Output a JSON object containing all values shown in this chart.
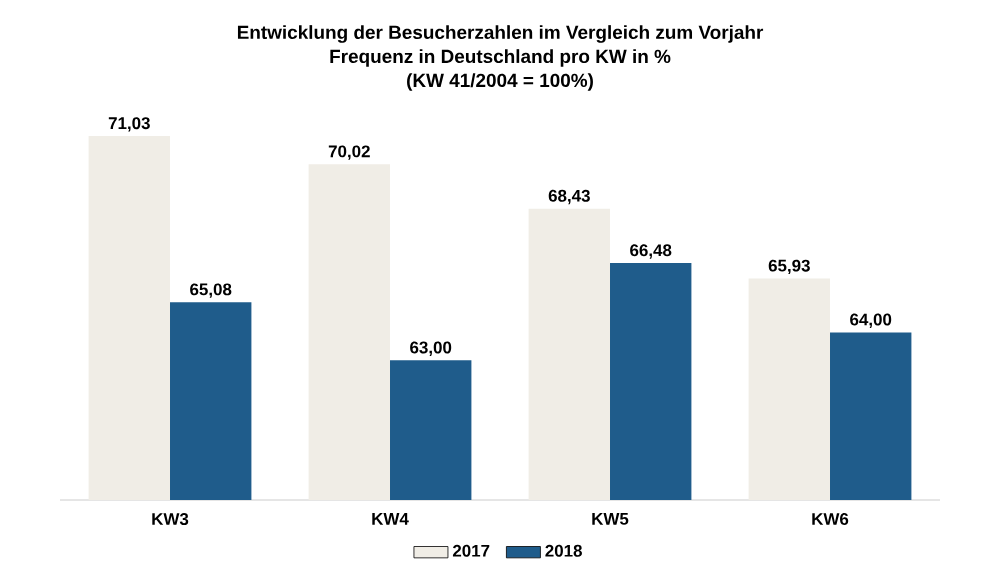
{
  "chart_data": {
    "type": "bar",
    "title": "Entwicklung der Besucherzahlen im Vergleich zum Vorjahr",
    "subtitle": "Frequenz in Deutschland pro KW in %",
    "annotations": [
      "(KW 41/2004 = 100%)"
    ],
    "categories": [
      "KW3",
      "KW4",
      "KW5",
      "KW6"
    ],
    "series": [
      {
        "name": "2017",
        "color": "#f0ede6",
        "values": [
          71.03,
          70.02,
          68.43,
          65.93
        ],
        "value_labels": [
          "71,03",
          "70,02",
          "68,43",
          "65,93"
        ]
      },
      {
        "name": "2018",
        "color": "#1f5c8b",
        "values": [
          65.08,
          63.0,
          66.48,
          64.0
        ],
        "value_labels": [
          "65,08",
          "63,00",
          "66,48",
          "64,00"
        ]
      }
    ],
    "ylim": [
      58,
      71.03
    ],
    "tick_labels": "x",
    "legend": "bottom"
  }
}
